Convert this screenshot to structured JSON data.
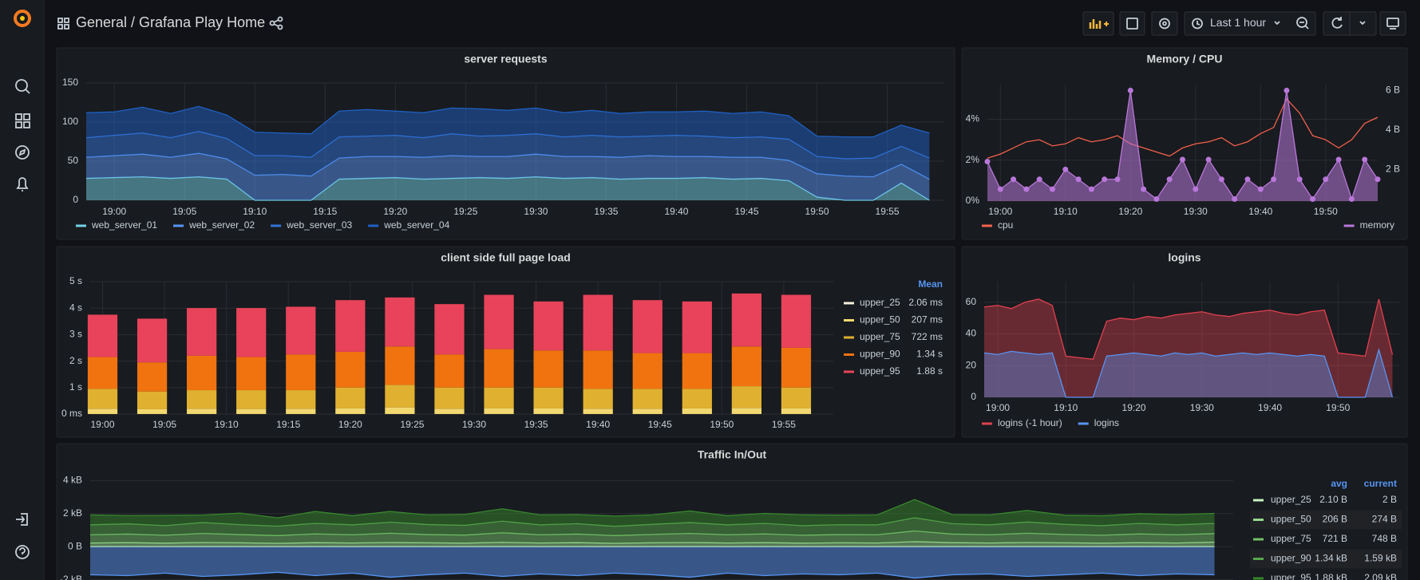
{
  "header": {
    "breadcrumb": "General / Grafana Play Home",
    "time_range": "Last 1 hour"
  },
  "panels": [
    {
      "title": "server requests",
      "chart_data": {
        "type": "area",
        "stacked": true,
        "grid": true,
        "legend": "bottom",
        "x": [
          "18:58",
          "19:00",
          "19:02",
          "19:04",
          "19:06",
          "19:08",
          "19:10",
          "19:12",
          "19:14",
          "19:16",
          "19:18",
          "19:20",
          "19:22",
          "19:24",
          "19:26",
          "19:28",
          "19:30",
          "19:32",
          "19:34",
          "19:36",
          "19:38",
          "19:40",
          "19:42",
          "19:44",
          "19:46",
          "19:48",
          "19:50",
          "19:52",
          "19:54",
          "19:56",
          "19:58"
        ],
        "xlim": [
          "18:58",
          "19:59"
        ],
        "xticks": [
          "19:00",
          "19:05",
          "19:10",
          "19:15",
          "19:20",
          "19:25",
          "19:30",
          "19:35",
          "19:40",
          "19:45",
          "19:50",
          "19:55"
        ],
        "ylim": [
          0,
          150
        ],
        "yticks": [
          0,
          50,
          100,
          150
        ],
        "series": [
          {
            "name": "web_server_01",
            "color": "#73d2e6",
            "values": [
              28,
              29,
              30,
              28,
              30,
              27,
              0,
              0,
              0,
              27,
              28,
              29,
              27,
              28,
              29,
              28,
              30,
              28,
              29,
              27,
              28,
              28,
              29,
              27,
              28,
              25,
              4,
              0,
              0,
              22,
              0
            ]
          },
          {
            "name": "web_server_02",
            "color": "#5794f2",
            "values": [
              27,
              28,
              29,
              27,
              30,
              26,
              32,
              33,
              31,
              27,
              28,
              27,
              28,
              29,
              27,
              28,
              29,
              28,
              27,
              28,
              29,
              28,
              27,
              28,
              27,
              26,
              30,
              31,
              30,
              24,
              27
            ]
          },
          {
            "name": "web_server_03",
            "color": "#3274d9",
            "values": [
              25,
              26,
              27,
              25,
              28,
              26,
              25,
              24,
              24,
              27,
              26,
              27,
              25,
              28,
              26,
              27,
              26,
              25,
              27,
              26,
              25,
              27,
              26,
              25,
              26,
              27,
              22,
              22,
              24,
              23,
              27
            ]
          },
          {
            "name": "web_server_04",
            "color": "#1f60c4",
            "values": [
              32,
              30,
              33,
              31,
              32,
              30,
              30,
              29,
              30,
              33,
              34,
              31,
              32,
              33,
              35,
              32,
              33,
              31,
              32,
              30,
              31,
              30,
              32,
              31,
              32,
              30,
              26,
              28,
              27,
              27,
              32
            ]
          }
        ]
      }
    },
    {
      "title": "Memory / CPU",
      "chart_data": {
        "type": "line",
        "grid": true,
        "legend": "bottom",
        "x": [
          "18:58",
          "19:00",
          "19:02",
          "19:04",
          "19:06",
          "19:08",
          "19:10",
          "19:12",
          "19:14",
          "19:16",
          "19:18",
          "19:20",
          "19:22",
          "19:24",
          "19:26",
          "19:28",
          "19:30",
          "19:32",
          "19:34",
          "19:36",
          "19:38",
          "19:40",
          "19:42",
          "19:44",
          "19:46",
          "19:48",
          "19:50",
          "19:52",
          "19:54",
          "19:56",
          "19:58"
        ],
        "xlim": [
          "18:58",
          "19:58"
        ],
        "xticks": [
          "19:00",
          "19:10",
          "19:20",
          "19:30",
          "19:40",
          "19:50"
        ],
        "ylim": [
          0,
          5.7
        ],
        "yticks": [
          {
            "value": 0,
            "label": "0%"
          },
          {
            "value": 2,
            "label": "2%"
          },
          {
            "value": 4,
            "label": "4%"
          }
        ],
        "y2lim": [
          0.4,
          6.3
        ],
        "y2ticks": [
          {
            "value": 2,
            "label": "2 B"
          },
          {
            "value": 4,
            "label": "4 B"
          },
          {
            "value": 6,
            "label": "6 B"
          }
        ],
        "series": [
          {
            "name": "cpu",
            "color": "#f2604d",
            "values": [
              2.1,
              2.3,
              2.6,
              2.9,
              3.0,
              2.7,
              2.8,
              3.1,
              2.9,
              3.0,
              3.2,
              2.8,
              2.6,
              2.4,
              2.2,
              2.6,
              2.8,
              2.9,
              3.1,
              2.7,
              2.9,
              3.3,
              3.6,
              5.0,
              4.3,
              3.2,
              3.0,
              2.6,
              3.0,
              3.8,
              4.1
            ]
          },
          {
            "name": "memory",
            "color": "#b877d9",
            "axis": "y2",
            "fill": true,
            "points": true,
            "values": [
              2.4,
              1.0,
              1.5,
              1.0,
              1.5,
              1.0,
              2.0,
              1.5,
              1.0,
              1.5,
              1.5,
              6.0,
              1.0,
              0.5,
              1.5,
              2.5,
              1.0,
              2.5,
              1.5,
              0.5,
              1.5,
              1.0,
              1.5,
              6.0,
              1.5,
              0.5,
              1.5,
              2.5,
              0.5,
              2.5,
              1.5
            ]
          }
        ]
      }
    },
    {
      "title": "client side full page load",
      "chart_data": {
        "type": "bar",
        "stacked": true,
        "grid": true,
        "legend": "right",
        "legend_title": "Mean",
        "x": [
          "19:00",
          "19:04",
          "19:08",
          "19:12",
          "19:16",
          "19:20",
          "19:24",
          "19:28",
          "19:32",
          "19:36",
          "19:40",
          "19:44",
          "19:48",
          "19:52",
          "19:56"
        ],
        "xlim": [
          "18:59",
          "19:59"
        ],
        "xticks": [
          "19:00",
          "19:05",
          "19:10",
          "19:15",
          "19:20",
          "19:25",
          "19:30",
          "19:35",
          "19:40",
          "19:45",
          "19:50",
          "19:55"
        ],
        "ylim": [
          0,
          5
        ],
        "yticks": [
          {
            "value": 0,
            "label": "0 ms"
          },
          {
            "value": 1,
            "label": "1 s"
          },
          {
            "value": 2,
            "label": "2 s"
          },
          {
            "value": 3,
            "label": "3 s"
          },
          {
            "value": 4,
            "label": "4 s"
          },
          {
            "value": 5,
            "label": "5 s"
          }
        ],
        "series": [
          {
            "name": "upper_25",
            "color": "#f4f0dc",
            "mean": "2.06 ms",
            "values": [
              0.002,
              0.002,
              0.002,
              0.002,
              0.002,
              0.002,
              0.002,
              0.002,
              0.002,
              0.002,
              0.002,
              0.002,
              0.002,
              0.002,
              0.002
            ]
          },
          {
            "name": "upper_50",
            "color": "#f2d870",
            "mean": "207 ms",
            "values": [
              0.2,
              0.18,
              0.2,
              0.19,
              0.2,
              0.22,
              0.25,
              0.2,
              0.22,
              0.21,
              0.2,
              0.2,
              0.21,
              0.23,
              0.22
            ]
          },
          {
            "name": "upper_75",
            "color": "#e0b030",
            "mean": "722 ms",
            "values": [
              0.75,
              0.67,
              0.7,
              0.71,
              0.7,
              0.78,
              0.85,
              0.8,
              0.78,
              0.79,
              0.75,
              0.75,
              0.74,
              0.82,
              0.78
            ]
          },
          {
            "name": "upper_90",
            "color": "#f07310",
            "mean": "1.34 s",
            "values": [
              1.2,
              1.1,
              1.3,
              1.25,
              1.35,
              1.35,
              1.45,
              1.25,
              1.45,
              1.4,
              1.45,
              1.35,
              1.35,
              1.5,
              1.5
            ]
          },
          {
            "name": "upper_95",
            "color": "#e8435a",
            "mean": "1.88 s",
            "values": [
              1.6,
              1.65,
              1.8,
              1.85,
              1.8,
              1.95,
              1.85,
              1.9,
              2.05,
              1.85,
              2.1,
              2.0,
              1.95,
              2.0,
              2.0
            ]
          }
        ]
      }
    },
    {
      "title": "logins",
      "chart_data": {
        "type": "line",
        "grid": true,
        "legend": "bottom",
        "x": [
          "18:58",
          "19:00",
          "19:02",
          "19:04",
          "19:06",
          "19:08",
          "19:10",
          "19:12",
          "19:14",
          "19:16",
          "19:18",
          "19:20",
          "19:22",
          "19:24",
          "19:26",
          "19:28",
          "19:30",
          "19:32",
          "19:34",
          "19:36",
          "19:38",
          "19:40",
          "19:42",
          "19:44",
          "19:46",
          "19:48",
          "19:50",
          "19:52",
          "19:54",
          "19:56",
          "19:58"
        ],
        "xlim": [
          "18:58",
          "19:59"
        ],
        "xticks": [
          "19:00",
          "19:10",
          "19:20",
          "19:30",
          "19:40",
          "19:50"
        ],
        "ylim": [
          0,
          73
        ],
        "yticks": [
          0,
          20,
          40,
          60
        ],
        "series": [
          {
            "name": "logins (-1 hour)",
            "color": "#e0404f",
            "fill": true,
            "values": [
              57,
              58,
              56,
              60,
              62,
              58,
              26,
              25,
              24,
              48,
              50,
              49,
              51,
              50,
              52,
              53,
              54,
              52,
              51,
              53,
              54,
              55,
              53,
              52,
              54,
              55,
              28,
              27,
              26,
              62,
              27
            ]
          },
          {
            "name": "logins",
            "color": "#5794f2",
            "fill": true,
            "values": [
              28,
              27,
              29,
              28,
              27,
              28,
              0,
              0,
              0,
              26,
              27,
              28,
              27,
              26,
              28,
              27,
              28,
              26,
              27,
              28,
              27,
              28,
              27,
              26,
              27,
              26,
              0,
              0,
              0,
              30,
              0
            ]
          }
        ]
      }
    },
    {
      "title": "Traffic In/Out",
      "chart_data": {
        "type": "area",
        "stacked": true,
        "grid": true,
        "legend": "table",
        "legend_columns": [
          "avg",
          "current"
        ],
        "x": [
          "18:58",
          "19:00",
          "19:02",
          "19:04",
          "19:06",
          "19:08",
          "19:10",
          "19:12",
          "19:14",
          "19:16",
          "19:18",
          "19:20",
          "19:22",
          "19:24",
          "19:26",
          "19:28",
          "19:30",
          "19:32",
          "19:34",
          "19:36",
          "19:38",
          "19:40",
          "19:42",
          "19:44",
          "19:46",
          "19:48",
          "19:50",
          "19:52",
          "19:54",
          "19:56",
          "19:58"
        ],
        "xlim": [
          "18:58",
          "19:59"
        ],
        "ylim": [
          -2.5,
          4.5
        ],
        "yticks": [
          {
            "value": 4,
            "label": "4 kB"
          },
          {
            "value": 2,
            "label": "2 kB"
          },
          {
            "value": 0,
            "label": "0 B"
          },
          {
            "value": -2,
            "label": "-2 kB"
          }
        ],
        "series": [
          {
            "name": "upper_25",
            "color": "#c8f2c2",
            "avg": "2.10 B",
            "current": "2 B",
            "values": [
              0.002,
              0.002,
              0.002,
              0.002,
              0.002,
              0.002,
              0.002,
              0.002,
              0.002,
              0.002,
              0.002,
              0.002,
              0.002,
              0.002,
              0.002,
              0.002,
              0.002,
              0.002,
              0.002,
              0.002,
              0.002,
              0.002,
              0.002,
              0.002,
              0.002,
              0.002,
              0.002,
              0.002,
              0.002,
              0.002,
              0.002
            ]
          },
          {
            "name": "upper_50",
            "color": "#96d98d",
            "avg": "206 B",
            "current": "274 B",
            "values": [
              0.22,
              0.24,
              0.21,
              0.25,
              0.23,
              0.2,
              0.24,
              0.22,
              0.25,
              0.23,
              0.21,
              0.26,
              0.22,
              0.24,
              0.2,
              0.23,
              0.25,
              0.22,
              0.24,
              0.21,
              0.23,
              0.22,
              0.3,
              0.24,
              0.22,
              0.25,
              0.23,
              0.21,
              0.24,
              0.22,
              0.27
            ]
          },
          {
            "name": "upper_75",
            "color": "#73bf69",
            "avg": "721 B",
            "current": "748 B",
            "values": [
              0.5,
              0.52,
              0.48,
              0.55,
              0.5,
              0.47,
              0.53,
              0.5,
              0.56,
              0.5,
              0.49,
              0.58,
              0.5,
              0.52,
              0.47,
              0.51,
              0.55,
              0.5,
              0.53,
              0.48,
              0.5,
              0.5,
              0.65,
              0.52,
              0.5,
              0.56,
              0.51,
              0.48,
              0.53,
              0.5,
              0.52
            ]
          },
          {
            "name": "upper_90",
            "color": "#56a64b",
            "avg": "1.34 kB",
            "current": "1.59 kB",
            "values": [
              0.6,
              0.62,
              0.58,
              0.66,
              0.6,
              0.57,
              0.64,
              0.6,
              0.67,
              0.61,
              0.59,
              0.7,
              0.6,
              0.63,
              0.56,
              0.61,
              0.66,
              0.6,
              0.64,
              0.58,
              0.6,
              0.6,
              0.8,
              0.63,
              0.6,
              0.68,
              0.61,
              0.58,
              0.64,
              0.6,
              0.62
            ]
          },
          {
            "name": "upper_95",
            "color": "#37872d",
            "avg": "1.88 kB",
            "current": "2.09 kB",
            "values": [
              0.6,
              0.5,
              0.62,
              0.45,
              0.7,
              0.5,
              0.72,
              0.55,
              0.65,
              0.58,
              0.66,
              0.75,
              0.6,
              0.55,
              0.62,
              0.57,
              0.7,
              0.55,
              0.6,
              0.65,
              0.58,
              0.6,
              1.1,
              0.55,
              0.6,
              0.7,
              0.55,
              0.6,
              0.58,
              0.62,
              0.6
            ]
          },
          {
            "color": "#5794f2",
            "values": [
              -1.7,
              -1.75,
              -1.6,
              -1.8,
              -1.7,
              -1.55,
              -1.75,
              -1.6,
              -1.85,
              -1.7,
              -1.6,
              -1.8,
              -1.65,
              -1.75,
              -1.6,
              -1.7,
              -1.85,
              -1.6,
              -1.75,
              -1.65,
              -1.7,
              -1.6,
              -1.9,
              -1.7,
              -1.65,
              -1.8,
              -1.7,
              -1.6,
              -1.75,
              -1.65,
              -1.7
            ]
          }
        ]
      }
    }
  ]
}
